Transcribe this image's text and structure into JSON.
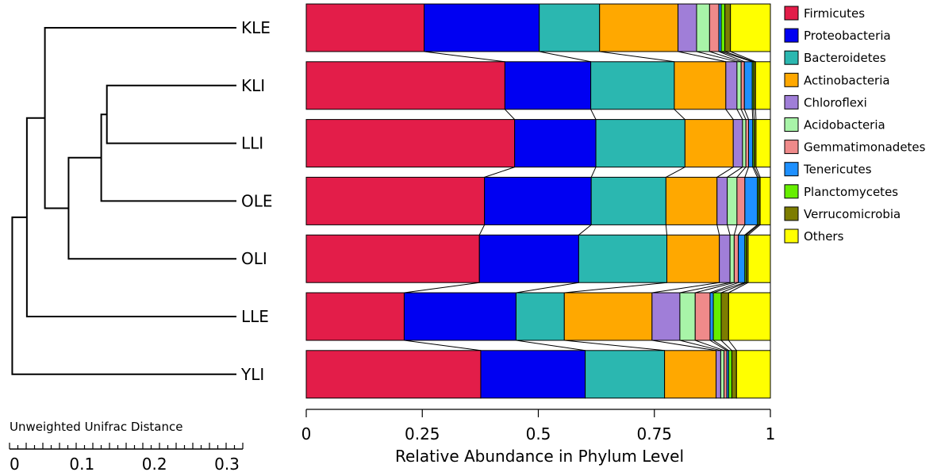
{
  "chart_data": {
    "type": "bar",
    "orientation": "horizontal-stacked",
    "xlabel": "Relative Abundance in Phylum Level",
    "xlim": [
      0,
      1
    ],
    "x_ticks": [
      "0",
      "0.25",
      "0.5",
      "0.75",
      "1"
    ],
    "legend_position": "right",
    "categories": [
      "KLE",
      "KLI",
      "LLI",
      "OLE",
      "OLI",
      "LLE",
      "YLI"
    ],
    "series": [
      {
        "name": "Firmicutes",
        "color": "#E31D49",
        "values": [
          0.254,
          0.428,
          0.449,
          0.384,
          0.373,
          0.211,
          0.376
        ]
      },
      {
        "name": "Proteobacteria",
        "color": "#0000F2",
        "values": [
          0.248,
          0.185,
          0.175,
          0.23,
          0.214,
          0.241,
          0.225
        ]
      },
      {
        "name": "Bacteroidetes",
        "color": "#2BB7B0",
        "values": [
          0.13,
          0.18,
          0.192,
          0.161,
          0.19,
          0.104,
          0.171
        ]
      },
      {
        "name": "Actinobacteria",
        "color": "#FFA800",
        "values": [
          0.169,
          0.111,
          0.104,
          0.11,
          0.113,
          0.189,
          0.111
        ]
      },
      {
        "name": "Chloroflexi",
        "color": "#A07ED8",
        "values": [
          0.04,
          0.024,
          0.02,
          0.022,
          0.023,
          0.06,
          0.01
        ]
      },
      {
        "name": "Acidobacteria",
        "color": "#A8F4A8",
        "values": [
          0.028,
          0.009,
          0.007,
          0.021,
          0.009,
          0.033,
          0.007
        ]
      },
      {
        "name": "Gemmatimonadetes",
        "color": "#EF8A8A",
        "values": [
          0.02,
          0.007,
          0.006,
          0.017,
          0.009,
          0.032,
          0.006
        ]
      },
      {
        "name": "Tenericutes",
        "color": "#1E90FF",
        "values": [
          0.005,
          0.017,
          0.009,
          0.027,
          0.014,
          0.007,
          0.004
        ]
      },
      {
        "name": "Planctomycetes",
        "color": "#66EE00",
        "values": [
          0.008,
          0.003,
          0.003,
          0.003,
          0.003,
          0.017,
          0.007
        ]
      },
      {
        "name": "Verrucomicrobia",
        "color": "#7D7D00",
        "values": [
          0.012,
          0.004,
          0.004,
          0.003,
          0.004,
          0.016,
          0.01
        ]
      },
      {
        "name": "Others",
        "color": "#FFFF00",
        "values": [
          0.086,
          0.032,
          0.031,
          0.022,
          0.048,
          0.09,
          0.073
        ]
      }
    ],
    "dendrogram": {
      "title": "Unweighted Unifrac Distance",
      "scale_ticks": [
        "0",
        "0.1",
        "0.2",
        "0.3"
      ],
      "scale_max": 0.35,
      "leaves": [
        "KLE",
        "KLI",
        "LLI",
        "OLE",
        "OLI",
        "LLE",
        "YLI"
      ],
      "merges": [
        {
          "left": "KLI",
          "right": "LLI",
          "height": 0.115
        },
        {
          "left": "m0",
          "right": "OLE",
          "height": 0.12
        },
        {
          "left": "m1",
          "right": "OLI",
          "height": 0.149
        },
        {
          "left": "KLE",
          "right": "m2",
          "height": 0.17
        },
        {
          "left": "m3",
          "right": "LLE",
          "height": 0.186
        },
        {
          "left": "m4",
          "right": "YLI",
          "height": 0.199
        }
      ]
    }
  }
}
